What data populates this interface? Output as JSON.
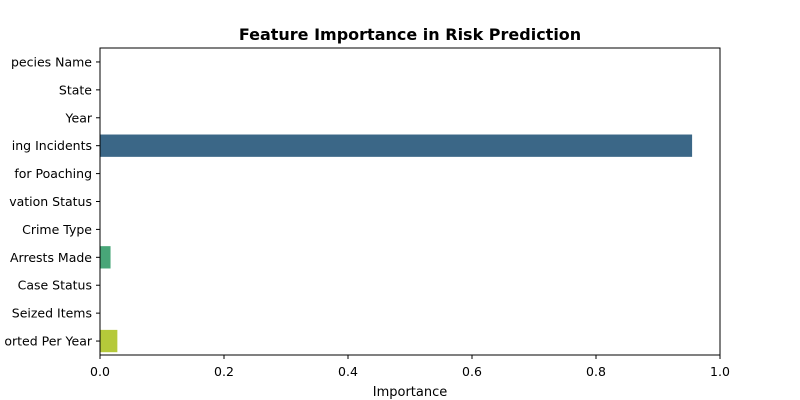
{
  "chart_data": {
    "type": "bar",
    "orientation": "horizontal",
    "title": "Feature Importance in Risk Prediction",
    "xlabel": "Importance",
    "ylabel": "",
    "xlim": [
      0,
      1.0
    ],
    "x_ticks": [
      "0.0",
      "0.2",
      "0.4",
      "0.6",
      "0.8",
      "1.0"
    ],
    "grid": false,
    "categories": [
      "pecies Name",
      "State",
      "Year",
      "ing Incidents",
      " for Poaching",
      "vation Status",
      "Crime Type",
      "Arrests Made",
      "Case Status",
      "Seized Items",
      "orted Per Year"
    ],
    "values": [
      0,
      0,
      0,
      0.955,
      0,
      0,
      0,
      0.017,
      0,
      0,
      0.028
    ],
    "colors": [
      "#482878",
      "#3e4a89",
      "#31688e",
      "#3b6787",
      "#25848e",
      "#1f9e89",
      "#35b779",
      "#48a678",
      "#90d743",
      "#b5de2b",
      "#b5c93a"
    ]
  }
}
